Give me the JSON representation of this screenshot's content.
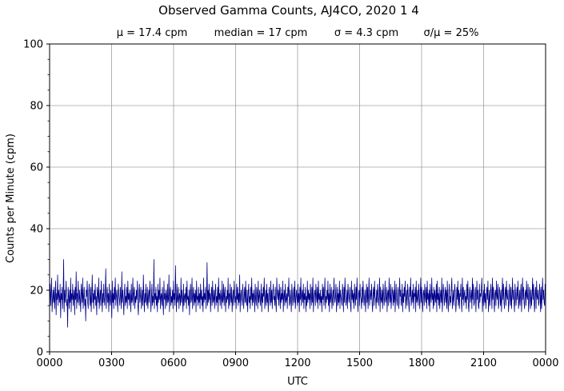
{
  "chart_data": {
    "type": "line",
    "title": "Observed Gamma Counts, AJ4CO, 2020 1 4",
    "subtitle": {
      "mean": "μ = 17.4 cpm",
      "median": "median = 17 cpm",
      "sigma": "σ = 4.3 cpm",
      "ratio": "σ/μ = 25%"
    },
    "xlabel": "UTC",
    "ylabel": "Counts per Minute (cpm)",
    "xlim": [
      0,
      1440
    ],
    "ylim": [
      0,
      100
    ],
    "x_ticks": [
      {
        "value": 0,
        "label": "0000"
      },
      {
        "value": 180,
        "label": "0300"
      },
      {
        "value": 360,
        "label": "0600"
      },
      {
        "value": 540,
        "label": "0900"
      },
      {
        "value": 720,
        "label": "1200"
      },
      {
        "value": 900,
        "label": "1500"
      },
      {
        "value": 1080,
        "label": "1800"
      },
      {
        "value": 1260,
        "label": "2100"
      },
      {
        "value": 1440,
        "label": "0000"
      }
    ],
    "y_ticks": [
      {
        "value": 0,
        "label": "0"
      },
      {
        "value": 20,
        "label": "20"
      },
      {
        "value": 40,
        "label": "40"
      },
      {
        "value": 60,
        "label": "60"
      },
      {
        "value": 80,
        "label": "80"
      },
      {
        "value": 100,
        "label": "100"
      }
    ],
    "y_minor_step": 5,
    "grid": true,
    "series": [
      {
        "color": "#00008b",
        "values": [
          18,
          22,
          15,
          19,
          24,
          13,
          17,
          20,
          16,
          21,
          14,
          18,
          23,
          12,
          19,
          17,
          25,
          15,
          20,
          18,
          16,
          22,
          11,
          19,
          17,
          21,
          14,
          18,
          30,
          13,
          20,
          16,
          19,
          23,
          15,
          17,
          8,
          21,
          18,
          14,
          20,
          16,
          24,
          13,
          19,
          17,
          22,
          15,
          18,
          20,
          12,
          21,
          17,
          26,
          14,
          19,
          16,
          23,
          18,
          15,
          20,
          17,
          13,
          22,
          19,
          16,
          24,
          14,
          18,
          21,
          15,
          17,
          10,
          20,
          18,
          23,
          16,
          14,
          19,
          22,
          17,
          15,
          21,
          13,
          18,
          25,
          16,
          19,
          14,
          20,
          17,
          22,
          15,
          18,
          12,
          21,
          19,
          16,
          24,
          14,
          17,
          20,
          15,
          23,
          18,
          13,
          19,
          16,
          22,
          17,
          15,
          20,
          27,
          14,
          18,
          21,
          16,
          19,
          13,
          22,
          17,
          15,
          20,
          18,
          11,
          23,
          16,
          19,
          14,
          21,
          17,
          24,
          15,
          18,
          20,
          16,
          13,
          22,
          19,
          17,
          15,
          21,
          18,
          14,
          26,
          16,
          20,
          17,
          12,
          19,
          22,
          15,
          18,
          16,
          21,
          14,
          23,
          17,
          19,
          15,
          20,
          18,
          13,
          22,
          16,
          17,
          24,
          15,
          19,
          21,
          14,
          18,
          16,
          20,
          17,
          23,
          15,
          12,
          19,
          22,
          16,
          18,
          21,
          14,
          17,
          20,
          15,
          25,
          18,
          13,
          19,
          16,
          22,
          17,
          15,
          21,
          14,
          18,
          20,
          16,
          23,
          19,
          13,
          17,
          22,
          15,
          18,
          16,
          30,
          14,
          19,
          17,
          21,
          15,
          18,
          13,
          22,
          16,
          20,
          17,
          24,
          14,
          18,
          19,
          15,
          21,
          16,
          12,
          23,
          17,
          19,
          14,
          20,
          18,
          15,
          22,
          16,
          17,
          25,
          13,
          19,
          21,
          15,
          18,
          16,
          20,
          14,
          23,
          17,
          19,
          15,
          28,
          18,
          13,
          22,
          16,
          17,
          21,
          14,
          19,
          18,
          15,
          24,
          16,
          20,
          17,
          13,
          22,
          15,
          18,
          19,
          16,
          21,
          14,
          23,
          17,
          18,
          15,
          20,
          12,
          19,
          22,
          16,
          17,
          24,
          14,
          18,
          21,
          15,
          19,
          16,
          20,
          13,
          23,
          17,
          18,
          15,
          21,
          16,
          19,
          14,
          22,
          17,
          20,
          15,
          18,
          13,
          24,
          16,
          19,
          17,
          21,
          14,
          18,
          29,
          15,
          20,
          16,
          22,
          17,
          19,
          13,
          18,
          21,
          15,
          23,
          16,
          17,
          20,
          14,
          19,
          22,
          15,
          18,
          16,
          21,
          13,
          24,
          17,
          19,
          15,
          20,
          18,
          14,
          23,
          16,
          17,
          22,
          15,
          19,
          21,
          13,
          18,
          16,
          20,
          17,
          24,
          14,
          19,
          15,
          22,
          18,
          16,
          21,
          13,
          17,
          20,
          15,
          23,
          19,
          16,
          18,
          14,
          22,
          17,
          21,
          15,
          19,
          16,
          25,
          13,
          18,
          20,
          17,
          15,
          22,
          19,
          14,
          18,
          21,
          16,
          23,
          17,
          15,
          20,
          13,
          19,
          22,
          16,
          18,
          14,
          21,
          17,
          24,
          15,
          19,
          16,
          20,
          18,
          13,
          22,
          17,
          15,
          21,
          19,
          14,
          23,
          16,
          18,
          20,
          15,
          17,
          22,
          13,
          19,
          16,
          21,
          18,
          24,
          14,
          17,
          20,
          15,
          22,
          16,
          19,
          13,
          18,
          21,
          17,
          15,
          23,
          16,
          20,
          14,
          19,
          22,
          17,
          18,
          15,
          21,
          16,
          13,
          24,
          19,
          17,
          20,
          15,
          22,
          18,
          14,
          21,
          16,
          19,
          17,
          23,
          13,
          18,
          20,
          15,
          22,
          16,
          17,
          19,
          14,
          21,
          18,
          24,
          15,
          16,
          20,
          17,
          13,
          22,
          19,
          15,
          18,
          21,
          16,
          23,
          14,
          17,
          20,
          18,
          15,
          22,
          16,
          19,
          13,
          21,
          17,
          24,
          15,
          18,
          20,
          16,
          22,
          14,
          19,
          17,
          21,
          13,
          18,
          15,
          23,
          16,
          20,
          17,
          19,
          14,
          22,
          18,
          15,
          21,
          16,
          24,
          13,
          17,
          19,
          20,
          15,
          22,
          18,
          16,
          21,
          14,
          23,
          17,
          19,
          15,
          20,
          16,
          18,
          13,
          22,
          17,
          21,
          15,
          19,
          24,
          14,
          18,
          16,
          20,
          17,
          23,
          15,
          19,
          13,
          22,
          16,
          18,
          21,
          14,
          17,
          20,
          15,
          24,
          19,
          16,
          18,
          22,
          13,
          17,
          21,
          15,
          19,
          16,
          23,
          14,
          20,
          18,
          17,
          15,
          22,
          19,
          13,
          21,
          16,
          24,
          18,
          15,
          17,
          20,
          14,
          22,
          19,
          16,
          18,
          21,
          15,
          13,
          23,
          17,
          20,
          16,
          19,
          14,
          22,
          18,
          15,
          21,
          17,
          24,
          16,
          13,
          19,
          20,
          15,
          22,
          18,
          17,
          14,
          21,
          16,
          23,
          19,
          15,
          18,
          20,
          13,
          17,
          22,
          16,
          21,
          14,
          19,
          24,
          15,
          18,
          20,
          17,
          22,
          16,
          13,
          19,
          21,
          15,
          23,
          18,
          17,
          14,
          20,
          16,
          22,
          19,
          15,
          18,
          24,
          13,
          21,
          17,
          16,
          20,
          14,
          22,
          19,
          15,
          18,
          23,
          16,
          17,
          21,
          13,
          19,
          20,
          15,
          24,
          18,
          16,
          22,
          14,
          17,
          21,
          19,
          15,
          20,
          16,
          23,
          13,
          18,
          22,
          17,
          15,
          19,
          21,
          14,
          16,
          24,
          18,
          20,
          15,
          17,
          22,
          13,
          19,
          16,
          21,
          18,
          23,
          14,
          17,
          20,
          15,
          22,
          19,
          16,
          13,
          21,
          18,
          24,
          15,
          17,
          20,
          16,
          22,
          14,
          19,
          18,
          21,
          13,
          23,
          16,
          17,
          20,
          15,
          22,
          19,
          14,
          18,
          24,
          16,
          21,
          17,
          13,
          19,
          20,
          15,
          22,
          18,
          16,
          21,
          14,
          23,
          17,
          19,
          15,
          20,
          13,
          22,
          18,
          16,
          24,
          17,
          19,
          14,
          21,
          15,
          20,
          18,
          16,
          22,
          13,
          23,
          17,
          19,
          15,
          21,
          14,
          18,
          20,
          16,
          24,
          13,
          17,
          22,
          19,
          15,
          18,
          21,
          16,
          20,
          14,
          23,
          17,
          13,
          19,
          22,
          15,
          18,
          16,
          21,
          24,
          14,
          17,
          20,
          15,
          19,
          22,
          18,
          13,
          16,
          21,
          17,
          23,
          15,
          20,
          14,
          19,
          18,
          22,
          16,
          13,
          24,
          17,
          21,
          15,
          19,
          20,
          16,
          18,
          14,
          22,
          17,
          23,
          15,
          13,
          19,
          21,
          16,
          18,
          20,
          14,
          24,
          17,
          22,
          15,
          16,
          19,
          21,
          13,
          18,
          23,
          17,
          20,
          15,
          14,
          22,
          16,
          19,
          18,
          21,
          24,
          13,
          17,
          20,
          15,
          22,
          16,
          19,
          14,
          18,
          21,
          17,
          23,
          13,
          16,
          20,
          15,
          19,
          22,
          18,
          14,
          24,
          17,
          21,
          16,
          13,
          19,
          20,
          15,
          23,
          18,
          17,
          22,
          14,
          16,
          21,
          19,
          15,
          20,
          13,
          18,
          24,
          17,
          22,
          16,
          14,
          19,
          21,
          15,
          23,
          18,
          17,
          20,
          13,
          16,
          22,
          19,
          15,
          21,
          14,
          18,
          24,
          17,
          20,
          16,
          13,
          22,
          19,
          15,
          18,
          21,
          17,
          23,
          14,
          16,
          20,
          15,
          19,
          22,
          13,
          18,
          24,
          17,
          21,
          16,
          14,
          19,
          20,
          15,
          23,
          18,
          17,
          22,
          13,
          16,
          21,
          19,
          14,
          20,
          15,
          18,
          24,
          17,
          22,
          16,
          13,
          19,
          21,
          14,
          23,
          18,
          17,
          20,
          15,
          16,
          22,
          19,
          13,
          21,
          14,
          18,
          24,
          17,
          20,
          16,
          15,
          22,
          19
        ]
      }
    ]
  }
}
